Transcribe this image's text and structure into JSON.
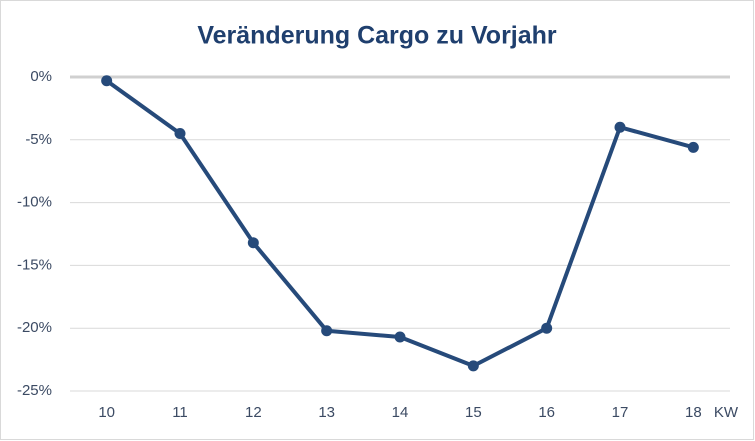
{
  "chart_data": {
    "type": "line",
    "title": "Veränderung Cargo zu Vorjahr",
    "x_label": "KW",
    "categories": [
      "10",
      "11",
      "12",
      "13",
      "14",
      "15",
      "16",
      "17",
      "18"
    ],
    "values": [
      -0.3,
      -4.5,
      -13.2,
      -20.2,
      -20.7,
      -23.0,
      -20.0,
      -4.0,
      -5.6
    ],
    "color": "#264a7a",
    "ylim": [
      -25,
      0
    ],
    "yticks": [
      {
        "value": 0,
        "label": "0%"
      },
      {
        "value": -5,
        "label": "-5%"
      },
      {
        "value": -10,
        "label": "-10%"
      },
      {
        "value": -15,
        "label": "-15%"
      },
      {
        "value": -20,
        "label": "-20%"
      },
      {
        "value": -25,
        "label": "-25%"
      }
    ],
    "grid": true
  }
}
